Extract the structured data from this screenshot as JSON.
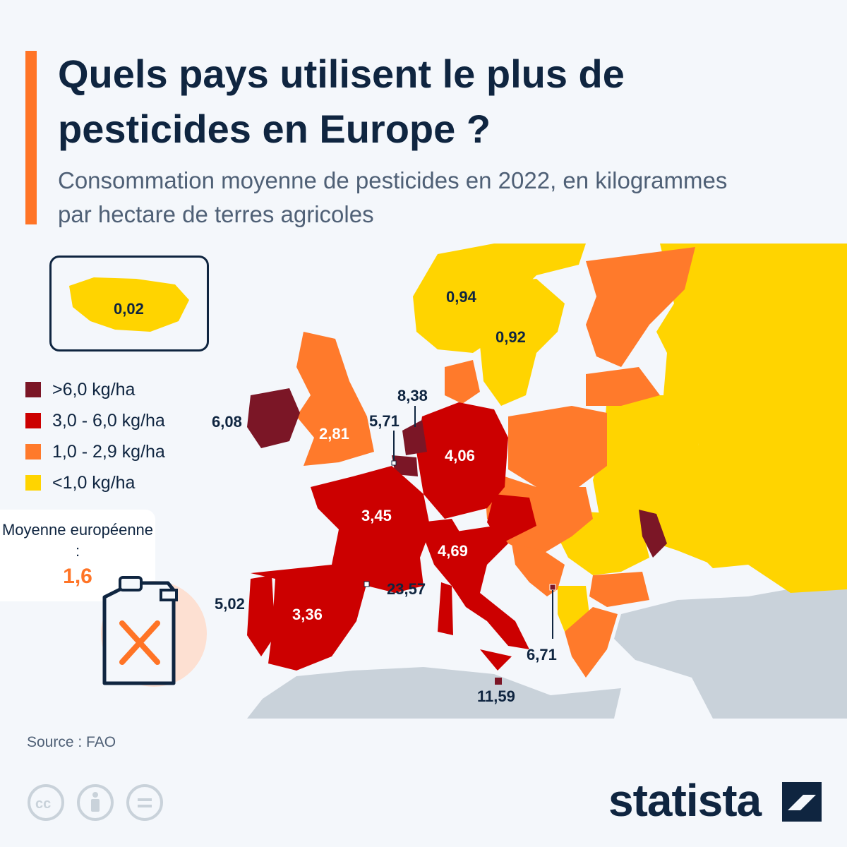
{
  "header": {
    "title": "Quels pays utilisent le plus de pesticides en Europe ?",
    "subtitle": "Consommation moyenne de pesticides en 2022, en kilogrammes par hectare de terres agricoles"
  },
  "legend": {
    "items": [
      {
        "label": ">6,0 kg/ha",
        "color": "#7b1626"
      },
      {
        "label": "3,0 - 6,0 kg/ha",
        "color": "#cc0000"
      },
      {
        "label": "1,0 - 2,9 kg/ha",
        "color": "#ff7a2b"
      },
      {
        "label": "<1,0 kg/ha",
        "color": "#ffd400"
      }
    ]
  },
  "average": {
    "label": "Moyenne européenne :",
    "value": "1,6"
  },
  "map_values": {
    "iceland": "0,02",
    "norway": "0,94",
    "sweden": "0,92",
    "ireland": "6,08",
    "uk": "2,81",
    "netherlands": "8,38",
    "belgium": "5,71",
    "germany": "4,06",
    "france": "3,45",
    "switzerland_italy": "4,69",
    "portugal": "5,02",
    "spain": "3,36",
    "andorra": "23,57",
    "malta": "11,59",
    "montenegro": "6,71"
  },
  "colors": {
    "dark": "#7b1626",
    "red": "#cc0000",
    "orange": "#ff7a2b",
    "yellow": "#ffd400",
    "gray": "#c9d2da"
  },
  "footer": {
    "source": "Source : FAO",
    "brand": "statista"
  }
}
